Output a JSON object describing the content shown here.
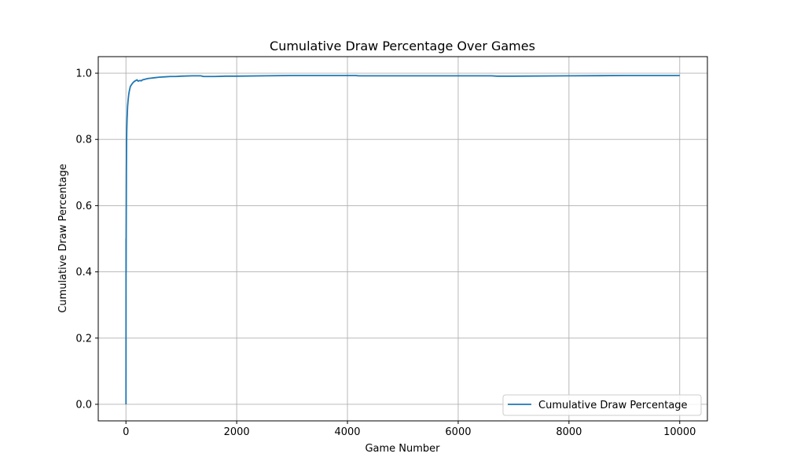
{
  "colors": {
    "series_line": "#1f77b4",
    "grid": "#b0b0b0",
    "axis": "#000000",
    "legend_border": "#cccccc",
    "background": "#ffffff"
  },
  "chart_data": {
    "type": "line",
    "title": "Cumulative Draw Percentage Over Games",
    "xlabel": "Game Number",
    "ylabel": "Cumulative Draw Percentage",
    "xlim": [
      -500,
      10500
    ],
    "ylim": [
      -0.05,
      1.05
    ],
    "xticks": [
      0,
      2000,
      4000,
      6000,
      8000,
      10000
    ],
    "yticks": [
      0.0,
      0.2,
      0.4,
      0.6,
      0.8,
      1.0
    ],
    "xtick_labels": [
      "0",
      "2000",
      "4000",
      "6000",
      "8000",
      "10000"
    ],
    "ytick_labels": [
      "0.0",
      "0.2",
      "0.4",
      "0.6",
      "0.8",
      "1.0"
    ],
    "grid": true,
    "legend_position": "lower right",
    "series": [
      {
        "name": "Cumulative Draw Percentage",
        "x": [
          1,
          2,
          3,
          4,
          5,
          6,
          8,
          10,
          12,
          15,
          20,
          25,
          30,
          40,
          50,
          60,
          70,
          80,
          100,
          120,
          150,
          180,
          200,
          220,
          250,
          280,
          300,
          350,
          400,
          450,
          500,
          600,
          700,
          800,
          900,
          1000,
          1200,
          1350,
          1400,
          1500,
          1600,
          1800,
          2000,
          2500,
          3000,
          3500,
          4000,
          4150,
          4200,
          5000,
          6000,
          6600,
          6700,
          7000,
          8000,
          9000,
          10000
        ],
        "y": [
          0.0,
          0.5,
          0.4,
          0.5,
          0.55,
          0.6,
          0.7,
          0.75,
          0.8,
          0.83,
          0.86,
          0.88,
          0.9,
          0.92,
          0.935,
          0.945,
          0.953,
          0.96,
          0.965,
          0.97,
          0.975,
          0.978,
          0.98,
          0.976,
          0.978,
          0.977,
          0.98,
          0.982,
          0.984,
          0.985,
          0.986,
          0.988,
          0.989,
          0.99,
          0.99,
          0.991,
          0.992,
          0.992,
          0.99,
          0.99,
          0.99,
          0.991,
          0.991,
          0.992,
          0.993,
          0.993,
          0.993,
          0.993,
          0.992,
          0.992,
          0.992,
          0.992,
          0.991,
          0.991,
          0.992,
          0.993,
          0.993
        ]
      }
    ]
  }
}
